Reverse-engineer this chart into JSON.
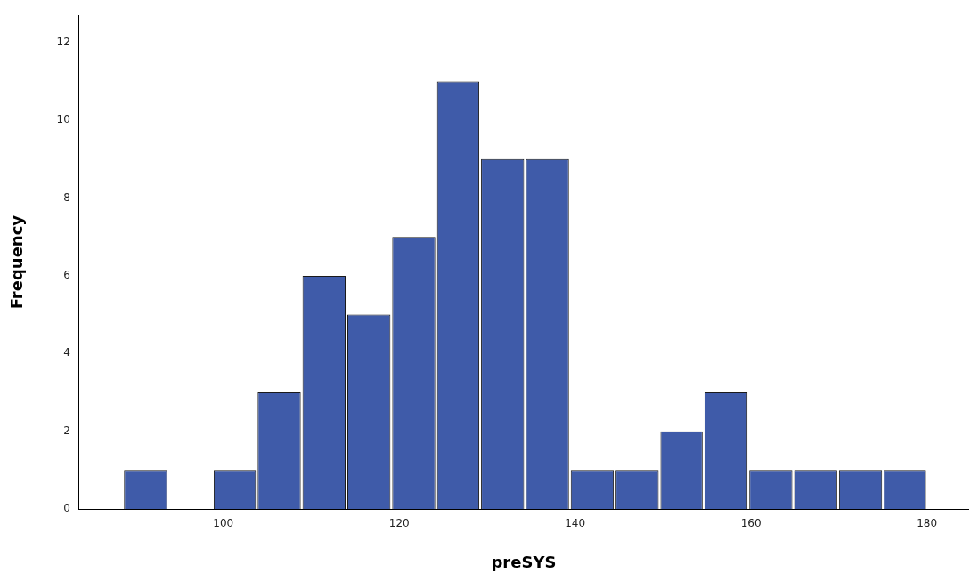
{
  "chart_data": {
    "type": "histogram",
    "xlabel": "preSYS",
    "ylabel": "Frequency",
    "color": "#3f5ba9",
    "bins": [
      88.6,
      93.7,
      98.8,
      103.8,
      108.9,
      114.0,
      119.1,
      124.2,
      129.2,
      134.3,
      139.4,
      144.5,
      149.6,
      154.6,
      159.7,
      164.8,
      169.9,
      175.0,
      180.0
    ],
    "values": [
      1,
      0,
      1,
      3,
      6,
      5,
      7,
      11,
      9,
      9,
      1,
      1,
      2,
      3,
      1,
      1,
      1,
      1
    ],
    "xlim": [
      83.6,
      184.7
    ],
    "xticks": [
      100,
      120,
      140,
      160,
      180
    ],
    "ylim": [
      0,
      12.7
    ],
    "yticks": [
      0,
      2,
      4,
      6,
      8,
      10,
      12
    ],
    "grid": false,
    "legend": false
  }
}
